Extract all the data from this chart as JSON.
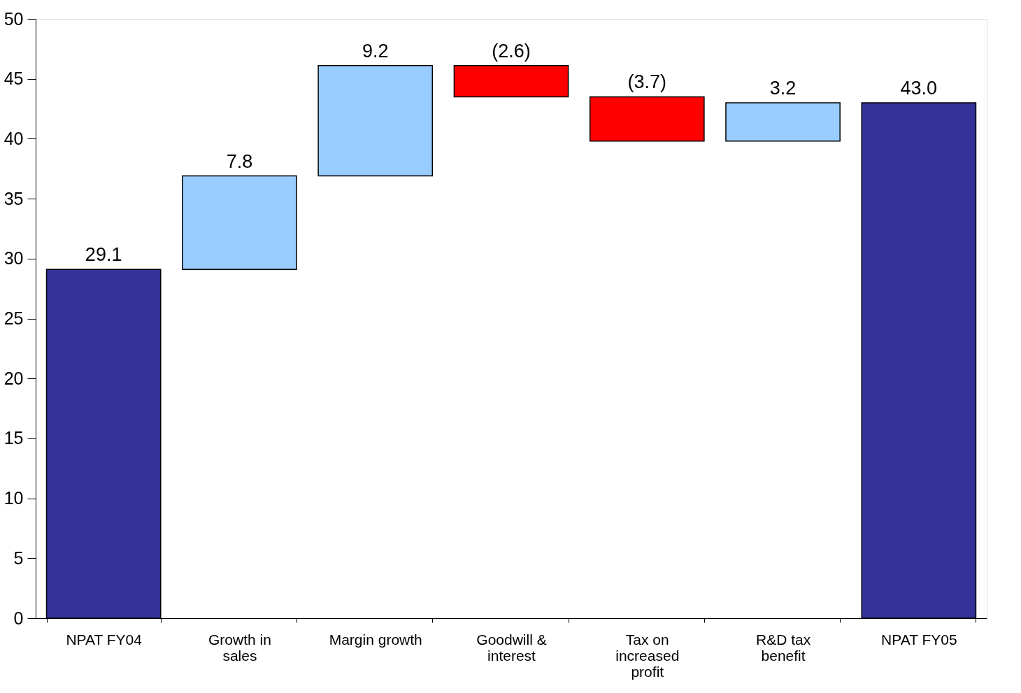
{
  "chart_data": {
    "type": "bar",
    "categories": [
      "NPAT FY04",
      "Growth in sales",
      "Margin growth",
      "Goodwill & interest",
      "Tax on increased profit",
      "R&D tax benefit",
      "NPAT FY05"
    ],
    "values": [
      29.1,
      7.8,
      9.2,
      -2.6,
      -3.7,
      3.2,
      43.0
    ],
    "base": [
      0,
      29.1,
      36.9,
      46.1,
      43.5,
      39.8,
      0
    ],
    "colors": [
      "#333399",
      "#99ccff",
      "#99ccff",
      "#ff0000",
      "#ff0000",
      "#99ccff",
      "#333399"
    ],
    "value_labels": [
      "29.1",
      "7.8",
      "9.2",
      "(2.6)",
      "(3.7)",
      "3.2",
      "43.0"
    ],
    "ylim": [
      0,
      50
    ],
    "yticks": [
      0,
      5,
      10,
      15,
      20,
      25,
      30,
      35,
      40,
      45,
      50
    ]
  }
}
